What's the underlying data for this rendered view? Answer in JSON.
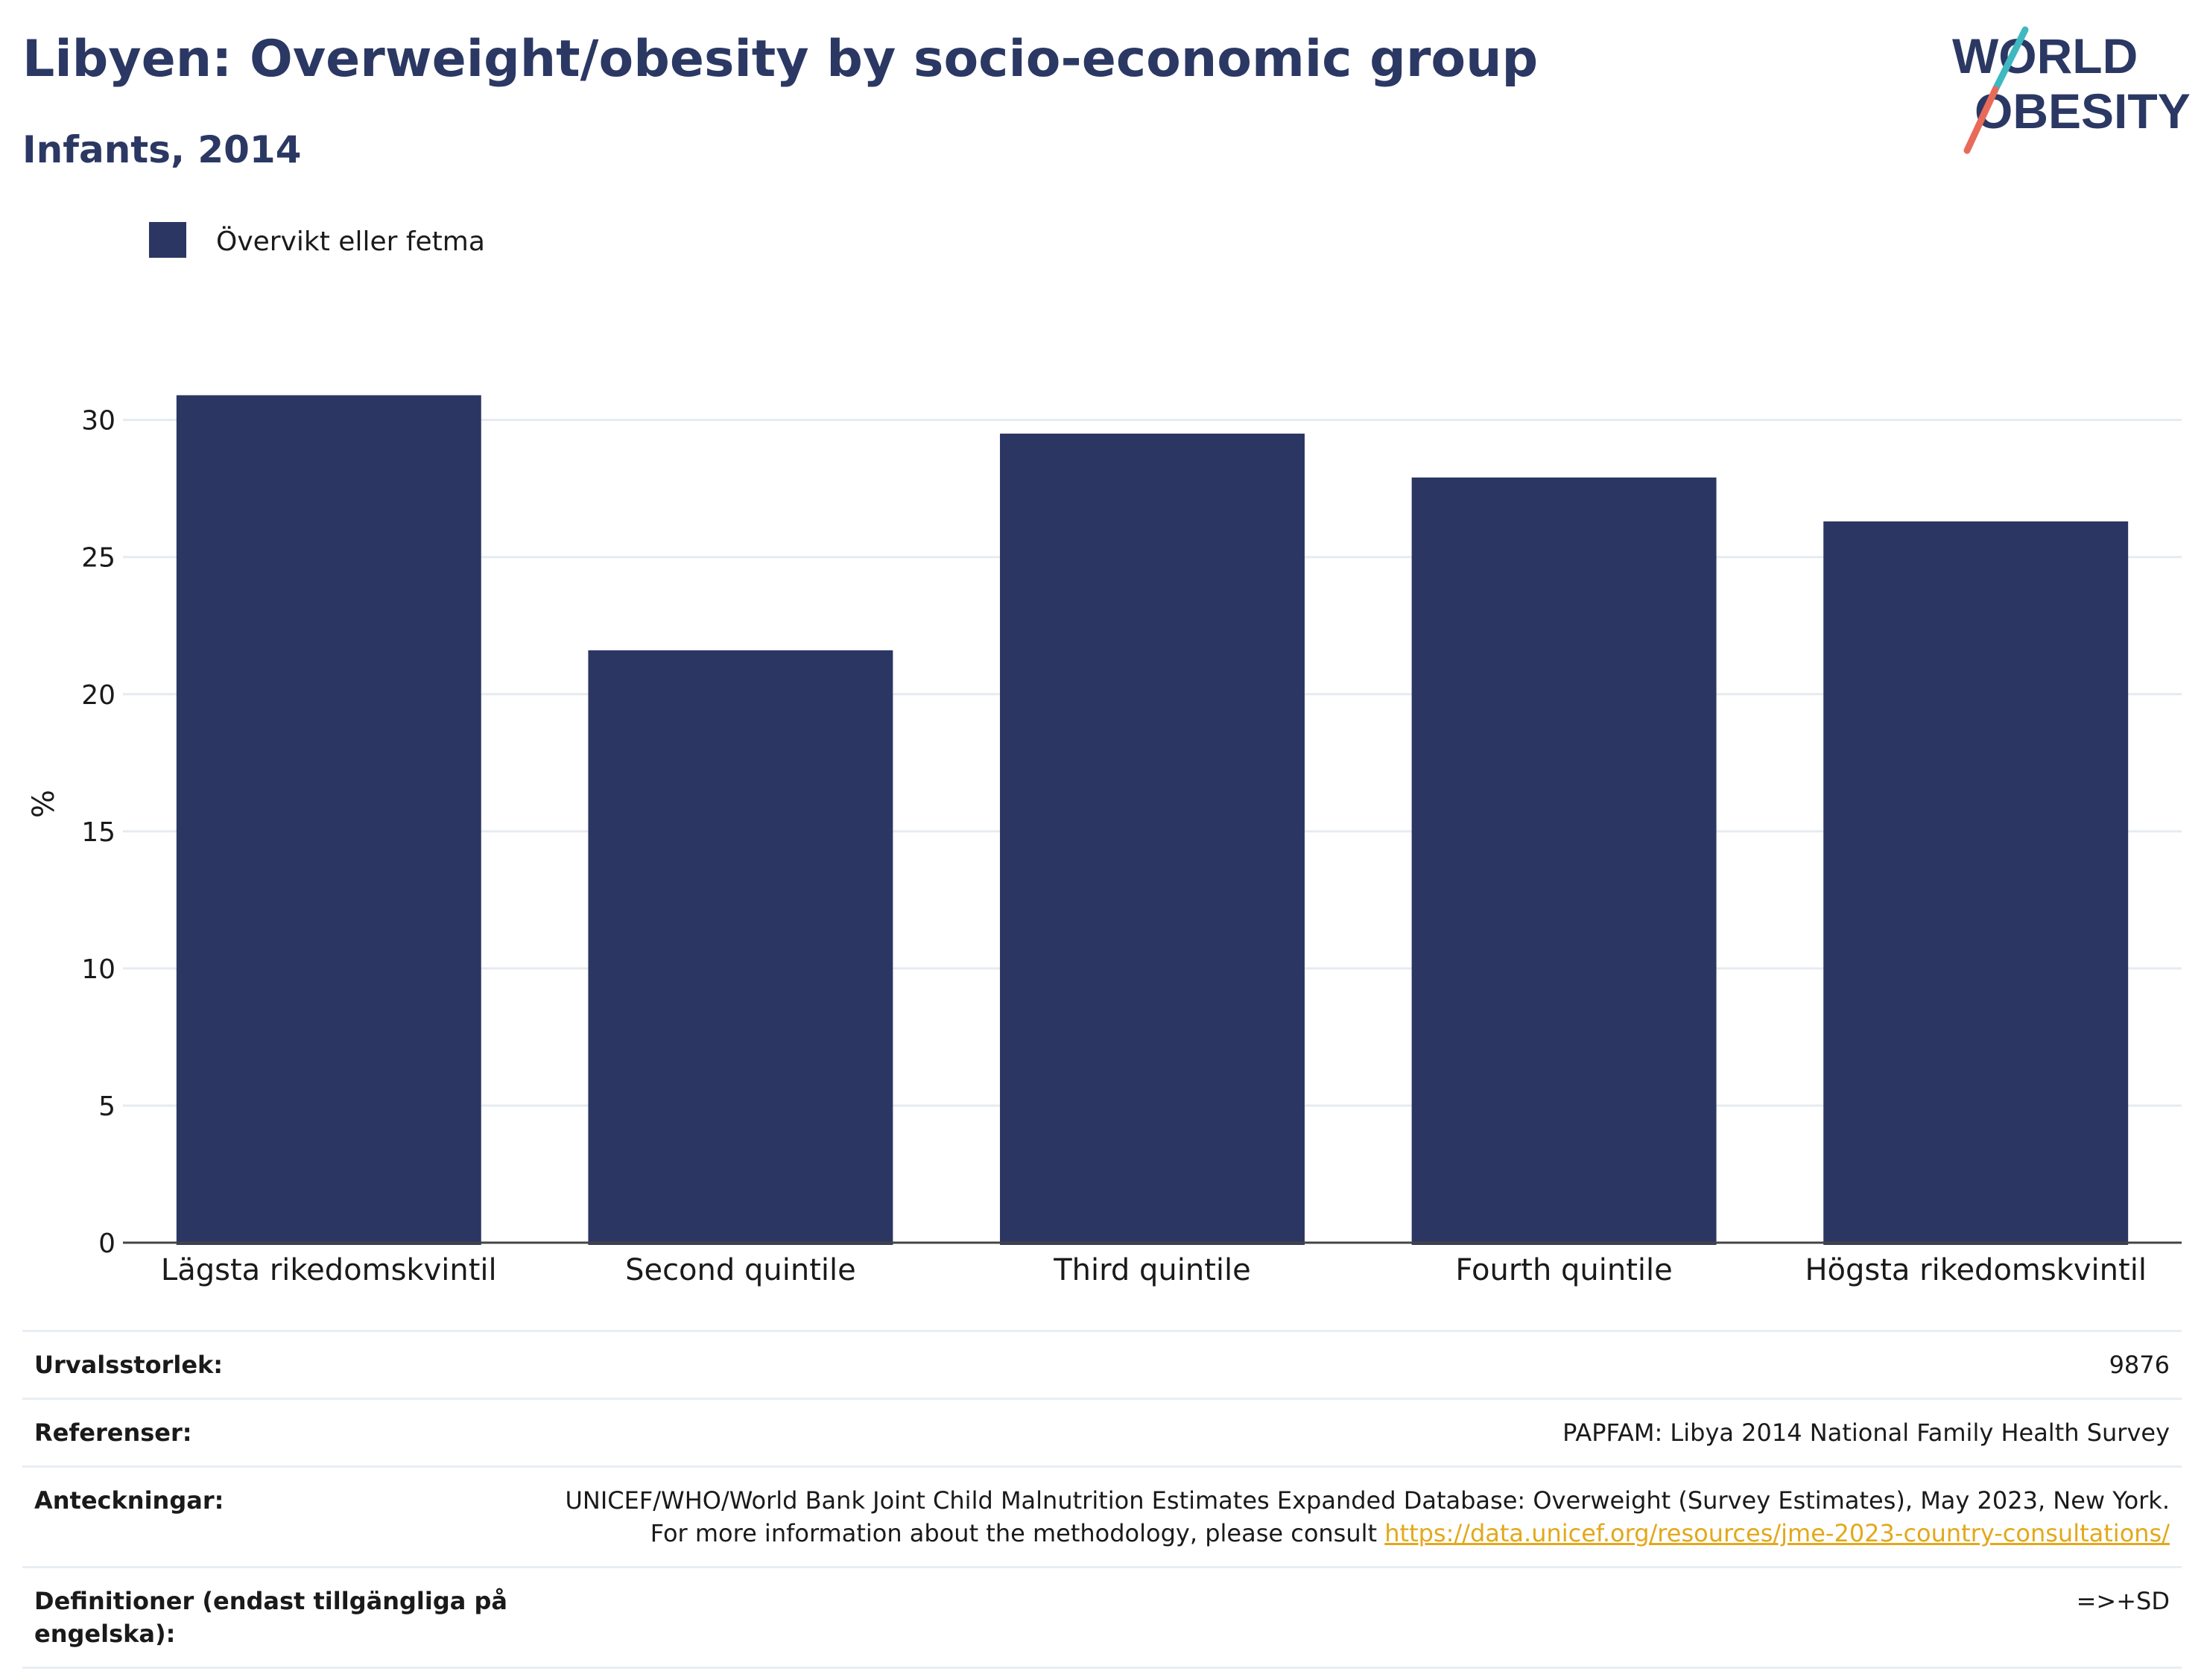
{
  "header": {
    "title": "Libyen: Overweight/obesity by socio-economic group",
    "subtitle": "Infants, 2014",
    "logo_line1": "WORLD",
    "logo_line2": "OBESITY"
  },
  "chart_data": {
    "type": "bar",
    "categories": [
      "Lägsta rikedomskvintil",
      "Second quintile",
      "Third quintile",
      "Fourth quintile",
      "Högsta rikedomskvintil"
    ],
    "series": [
      {
        "name": "Övervikt eller fetma",
        "values": [
          30.9,
          21.6,
          29.5,
          27.9,
          26.3
        ],
        "color": "#2b3663"
      }
    ],
    "ylabel": "%",
    "ylim": [
      0,
      32
    ],
    "yticks": [
      0,
      5,
      10,
      15,
      20,
      25,
      30
    ],
    "grid": true,
    "legend_position": "top-left"
  },
  "footer": {
    "rows": [
      {
        "label": "Urvalsstorlek:",
        "value": "9876"
      },
      {
        "label": "Referenser:",
        "value": "PAPFAM: Libya 2014 National Family Health Survey"
      },
      {
        "label": "Anteckningar:",
        "value": "UNICEF/WHO/World Bank Joint Child Malnutrition Estimates Expanded Database: Overweight (Survey Estimates), May 2023, New York. For more information about the methodology, please consult ",
        "link": "https://data.unicef.org/resources/jme-2023-country-consultations/"
      },
      {
        "label": "Definitioner (endast tillgängliga på engelska):",
        "value": "=>+SD"
      }
    ]
  },
  "colors": {
    "brand": "#2b3863",
    "bar": "#2b3663",
    "accent_teal": "#3fb8c1",
    "accent_coral": "#e86b5a",
    "link": "#e3a81a"
  }
}
